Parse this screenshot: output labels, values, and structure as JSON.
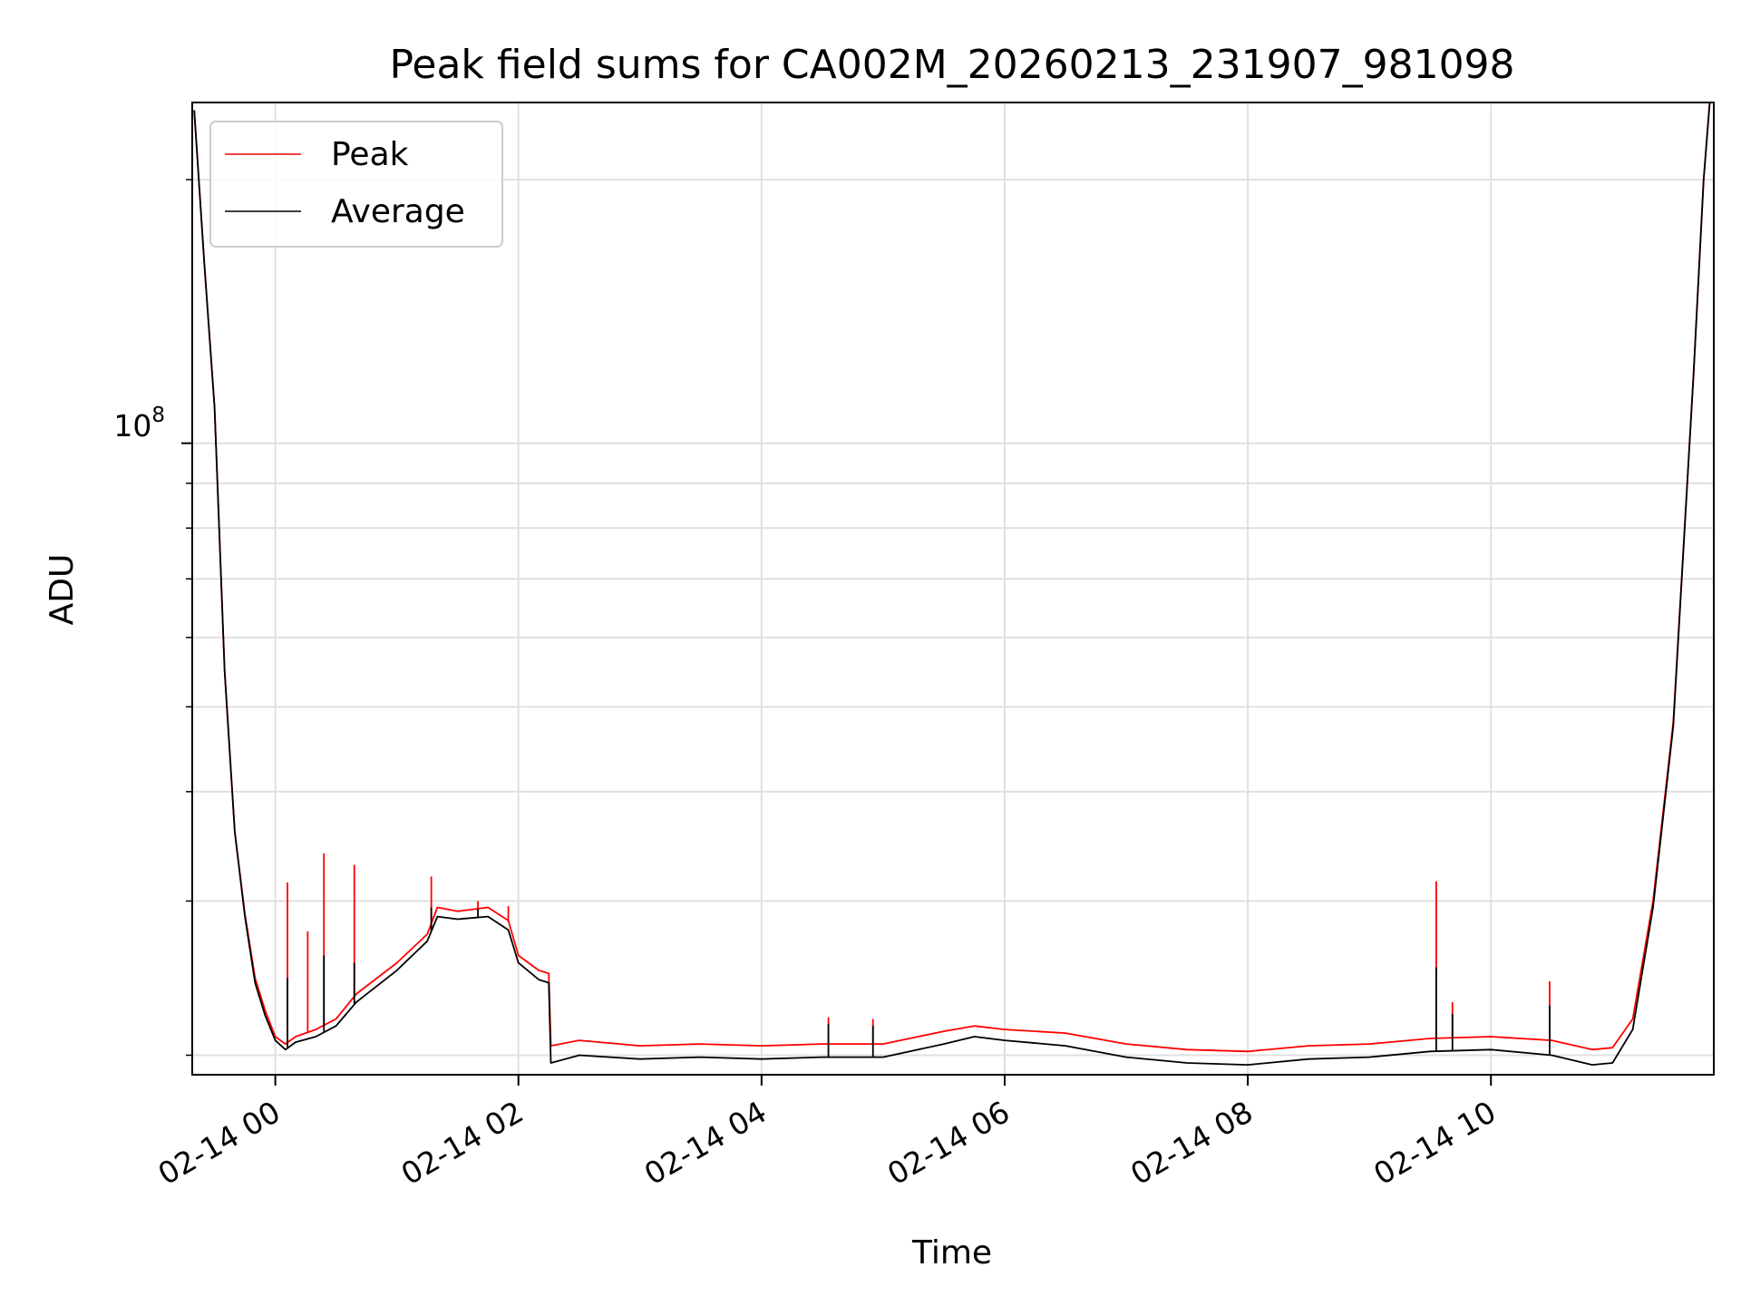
{
  "chart_data": {
    "type": "line",
    "title": "Peak field sums for CA002M_20260213_231907_981098",
    "xlabel": "Time",
    "ylabel": "ADU",
    "y_scale": "log",
    "ylim": [
      19000000,
      245000000
    ],
    "xlim": [
      "02-13 23:19",
      "02-14 11:50"
    ],
    "x_ticks": [
      "02-14 00",
      "02-14 02",
      "02-14 04",
      "02-14 06",
      "02-14 08",
      "02-14 10"
    ],
    "y_tick_major": {
      "mantissa": "10",
      "exponent": "8"
    },
    "grid": true,
    "legend_position": "top-left",
    "series": [
      {
        "name": "Peak",
        "color": "#ff0000",
        "points": [
          [
            "02-13 23:20",
            240000000
          ],
          [
            "02-13 23:25",
            160000000
          ],
          [
            "02-13 23:30",
            110000000
          ],
          [
            "02-13 23:35",
            55000000
          ],
          [
            "02-13 23:40",
            36000000
          ],
          [
            "02-13 23:45",
            29000000
          ],
          [
            "02-13 23:50",
            24500000
          ],
          [
            "02-13 23:55",
            22500000
          ],
          [
            "02-14 00:00",
            21000000
          ],
          [
            "02-14 00:05",
            20600000
          ],
          [
            "02-14 00:10",
            21000000
          ],
          [
            "02-14 00:20",
            21400000
          ],
          [
            "02-14 00:30",
            22000000
          ],
          [
            "02-14 00:40",
            23500000
          ],
          [
            "02-14 01:00",
            25500000
          ],
          [
            "02-14 01:15",
            27500000
          ],
          [
            "02-14 01:20",
            29500000
          ],
          [
            "02-14 01:30",
            29200000
          ],
          [
            "02-14 01:45",
            29500000
          ],
          [
            "02-14 01:55",
            28500000
          ],
          [
            "02-14 02:00",
            26000000
          ],
          [
            "02-14 02:10",
            25000000
          ],
          [
            "02-14 02:15",
            24800000
          ],
          [
            "02-14 02:16",
            20500000
          ],
          [
            "02-14 02:30",
            20800000
          ],
          [
            "02-14 03:00",
            20500000
          ],
          [
            "02-14 03:30",
            20600000
          ],
          [
            "02-14 04:00",
            20500000
          ],
          [
            "02-14 04:30",
            20600000
          ],
          [
            "02-14 05:00",
            20600000
          ],
          [
            "02-14 05:30",
            21300000
          ],
          [
            "02-14 05:45",
            21600000
          ],
          [
            "02-14 06:00",
            21400000
          ],
          [
            "02-14 06:30",
            21200000
          ],
          [
            "02-14 07:00",
            20600000
          ],
          [
            "02-14 07:30",
            20300000
          ],
          [
            "02-14 08:00",
            20200000
          ],
          [
            "02-14 08:30",
            20500000
          ],
          [
            "02-14 09:00",
            20600000
          ],
          [
            "02-14 09:30",
            20900000
          ],
          [
            "02-14 10:00",
            21000000
          ],
          [
            "02-14 10:30",
            20800000
          ],
          [
            "02-14 10:50",
            20300000
          ],
          [
            "02-14 11:00",
            20400000
          ],
          [
            "02-14 11:10",
            22000000
          ],
          [
            "02-14 11:20",
            30000000
          ],
          [
            "02-14 11:30",
            48000000
          ],
          [
            "02-14 11:40",
            120000000
          ],
          [
            "02-14 11:45",
            200000000
          ],
          [
            "02-14 11:48",
            245000000
          ]
        ],
        "spikes": [
          [
            "02-14 00:06",
            31500000
          ],
          [
            "02-14 00:16",
            27700000
          ],
          [
            "02-14 00:24",
            34000000
          ],
          [
            "02-14 00:39",
            33000000
          ],
          [
            "02-14 01:17",
            32000000
          ],
          [
            "02-14 01:40",
            30000000
          ],
          [
            "02-14 01:55",
            29600000
          ],
          [
            "02-14 04:33",
            22100000
          ],
          [
            "02-14 04:55",
            22000000
          ],
          [
            "02-14 09:33",
            31600000
          ],
          [
            "02-14 09:41",
            23000000
          ],
          [
            "02-14 10:29",
            24300000
          ]
        ]
      },
      {
        "name": "Average",
        "color": "#000000",
        "points": [
          [
            "02-13 23:20",
            240000000
          ],
          [
            "02-13 23:25",
            160000000
          ],
          [
            "02-13 23:30",
            110000000
          ],
          [
            "02-13 23:35",
            55000000
          ],
          [
            "02-13 23:40",
            36000000
          ],
          [
            "02-13 23:45",
            28800000
          ],
          [
            "02-13 23:50",
            24200000
          ],
          [
            "02-13 23:55",
            22200000
          ],
          [
            "02-14 00:00",
            20800000
          ],
          [
            "02-14 00:05",
            20300000
          ],
          [
            "02-14 00:10",
            20700000
          ],
          [
            "02-14 00:20",
            21000000
          ],
          [
            "02-14 00:30",
            21600000
          ],
          [
            "02-14 00:40",
            23000000
          ],
          [
            "02-14 01:00",
            25000000
          ],
          [
            "02-14 01:15",
            27000000
          ],
          [
            "02-14 01:20",
            28800000
          ],
          [
            "02-14 01:30",
            28600000
          ],
          [
            "02-14 01:45",
            28800000
          ],
          [
            "02-14 01:55",
            27800000
          ],
          [
            "02-14 02:00",
            25500000
          ],
          [
            "02-14 02:10",
            24400000
          ],
          [
            "02-14 02:15",
            24200000
          ],
          [
            "02-14 02:16",
            19600000
          ],
          [
            "02-14 02:30",
            20000000
          ],
          [
            "02-14 03:00",
            19800000
          ],
          [
            "02-14 03:30",
            19900000
          ],
          [
            "02-14 04:00",
            19800000
          ],
          [
            "02-14 04:30",
            19900000
          ],
          [
            "02-14 05:00",
            19900000
          ],
          [
            "02-14 05:30",
            20600000
          ],
          [
            "02-14 05:45",
            21000000
          ],
          [
            "02-14 06:00",
            20800000
          ],
          [
            "02-14 06:30",
            20500000
          ],
          [
            "02-14 07:00",
            19900000
          ],
          [
            "02-14 07:30",
            19600000
          ],
          [
            "02-14 08:00",
            19500000
          ],
          [
            "02-14 08:30",
            19800000
          ],
          [
            "02-14 09:00",
            19900000
          ],
          [
            "02-14 09:30",
            20200000
          ],
          [
            "02-14 10:00",
            20300000
          ],
          [
            "02-14 10:30",
            20000000
          ],
          [
            "02-14 10:50",
            19500000
          ],
          [
            "02-14 11:00",
            19600000
          ],
          [
            "02-14 11:10",
            21400000
          ],
          [
            "02-14 11:20",
            29500000
          ],
          [
            "02-14 11:30",
            47500000
          ],
          [
            "02-14 11:40",
            120000000
          ],
          [
            "02-14 11:45",
            200000000
          ],
          [
            "02-14 11:48",
            245000000
          ]
        ],
        "spikes": [
          [
            "02-14 00:06",
            24500000
          ],
          [
            "02-14 00:24",
            26000000
          ],
          [
            "02-14 00:39",
            25500000
          ],
          [
            "02-14 01:17",
            29500000
          ],
          [
            "02-14 01:40",
            29400000
          ],
          [
            "02-14 04:33",
            21700000
          ],
          [
            "02-14 04:55",
            21600000
          ],
          [
            "02-14 09:33",
            25200000
          ],
          [
            "02-14 09:41",
            22300000
          ],
          [
            "02-14 10:29",
            22800000
          ]
        ]
      }
    ]
  }
}
